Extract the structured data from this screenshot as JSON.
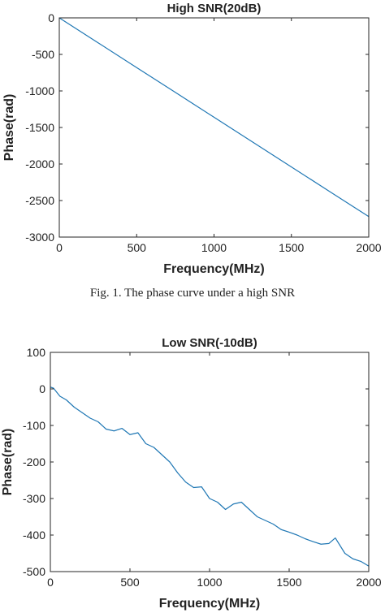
{
  "chart_data": [
    {
      "type": "line",
      "title": "High SNR(20dB)",
      "xlabel": "Frequency(MHz)",
      "ylabel": "Phase(rad)",
      "xlim": [
        0,
        2000
      ],
      "ylim": [
        -3000,
        0
      ],
      "xticks": [
        0,
        500,
        1000,
        1500,
        2000
      ],
      "yticks": [
        0,
        -500,
        -1000,
        -1500,
        -2000,
        -2500,
        -3000
      ],
      "grid": false,
      "color": "#1f77b4",
      "series": [
        {
          "x": [
            0,
            250,
            500,
            750,
            1000,
            1250,
            1500,
            1750,
            2000
          ],
          "y": [
            0,
            -340,
            -680,
            -1020,
            -1360,
            -1700,
            -2040,
            -2380,
            -2720
          ]
        }
      ]
    },
    {
      "type": "line",
      "title": "Low SNR(-10dB)",
      "xlabel": "Frequency(MHz)",
      "ylabel": "Phase(rad)",
      "xlim": [
        0,
        2000
      ],
      "ylim": [
        -500,
        100
      ],
      "xticks": [
        0,
        500,
        1000,
        1500,
        2000
      ],
      "yticks": [
        100,
        0,
        -100,
        -200,
        -300,
        -400,
        -500
      ],
      "grid": false,
      "color": "#1f77b4",
      "series": [
        {
          "x": [
            0,
            20,
            60,
            100,
            150,
            200,
            250,
            300,
            350,
            400,
            450,
            500,
            550,
            600,
            650,
            700,
            750,
            800,
            850,
            900,
            950,
            1000,
            1050,
            1100,
            1150,
            1200,
            1250,
            1300,
            1350,
            1400,
            1450,
            1500,
            1550,
            1600,
            1650,
            1700,
            1750,
            1790,
            1850,
            1900,
            1950,
            2000
          ],
          "y": [
            5,
            2,
            -20,
            -30,
            -50,
            -65,
            -80,
            -90,
            -110,
            -115,
            -108,
            -125,
            -120,
            -150,
            -160,
            -180,
            -200,
            -230,
            -255,
            -270,
            -268,
            -300,
            -310,
            -330,
            -315,
            -310,
            -330,
            -350,
            -360,
            -370,
            -385,
            -392,
            -400,
            -410,
            -418,
            -425,
            -423,
            -408,
            -450,
            -465,
            -472,
            -485
          ]
        }
      ]
    }
  ],
  "caption": "Fig. 1.   The phase curve under a high SNR"
}
